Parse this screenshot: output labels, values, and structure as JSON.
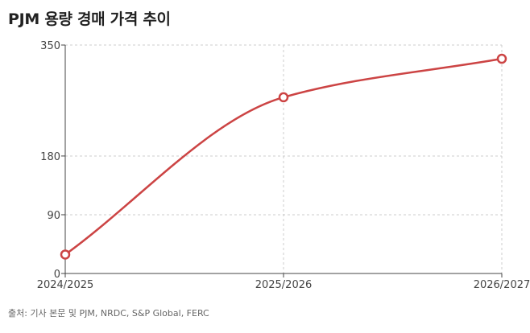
{
  "title": "PJM 용량 경매 가격 추이",
  "source": "출처: 기사 본문 및 PJM, NRDC, S&P Global, FERC",
  "colors": {
    "line": "#cc4444",
    "marker_fill": "#ffffff",
    "grid": "#cccccc",
    "axis": "#444444"
  },
  "chart_data": {
    "type": "line",
    "title": "PJM 용량 경매 가격 추이",
    "xlabel": "",
    "ylabel": "",
    "categories": [
      "2024/2025",
      "2025/2026",
      "2026/2027"
    ],
    "series": [
      {
        "values": [
          29,
          270,
          329
        ]
      }
    ],
    "ylim": [
      0,
      350
    ],
    "yticks": [
      0,
      90,
      180,
      350
    ],
    "grid": true,
    "line_style": "smooth",
    "markers": "hollow-circle"
  }
}
